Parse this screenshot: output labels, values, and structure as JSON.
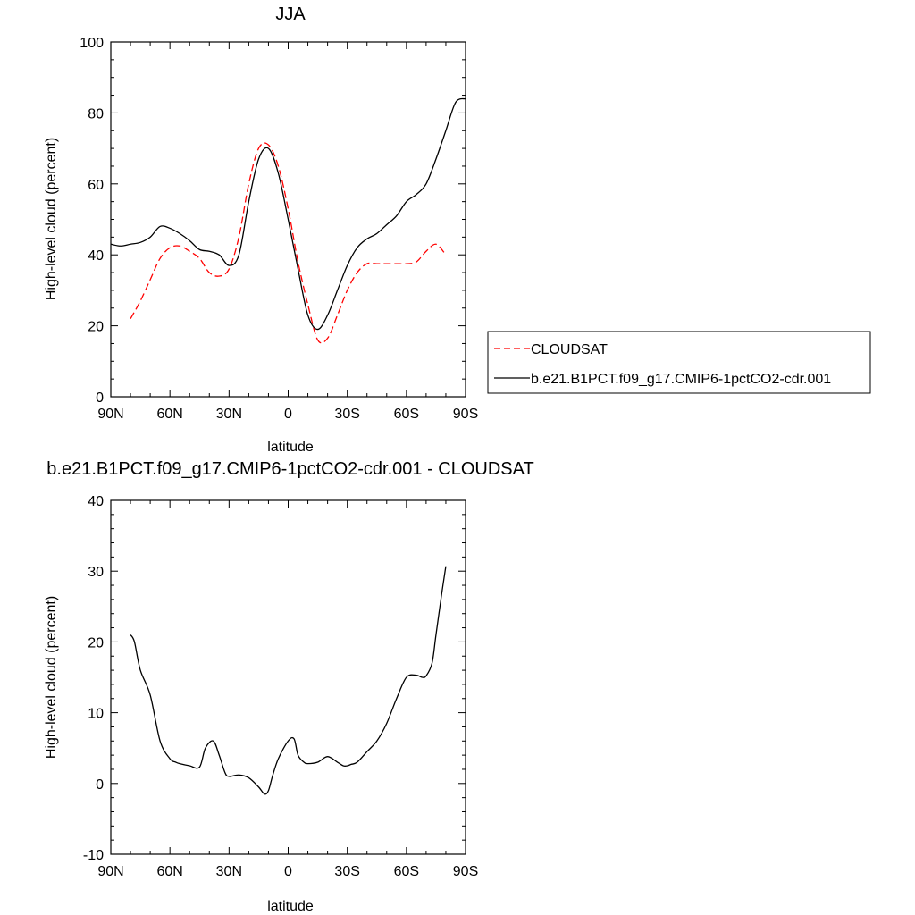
{
  "chart_data": [
    {
      "type": "line",
      "title": "JJA",
      "xlabel": "latitude",
      "ylabel": "High-level cloud (percent)",
      "xlim": [
        90,
        -90
      ],
      "ylim": [
        0,
        100
      ],
      "x_ticks": [
        {
          "value": 90,
          "label": "90N"
        },
        {
          "value": 60,
          "label": "60N"
        },
        {
          "value": 30,
          "label": "30N"
        },
        {
          "value": 0,
          "label": "0"
        },
        {
          "value": -30,
          "label": "30S"
        },
        {
          "value": -60,
          "label": "60S"
        },
        {
          "value": -90,
          "label": "90S"
        }
      ],
      "y_ticks": [
        0,
        20,
        40,
        60,
        80,
        100
      ],
      "legend_placement": "right",
      "series": [
        {
          "name": "CLOUDSAT",
          "color": "#ff0000",
          "dash": "dashed",
          "x": [
            80,
            75,
            70,
            65,
            60,
            55,
            50,
            45,
            40,
            35,
            30,
            25,
            20,
            15,
            10,
            5,
            0,
            -5,
            -10,
            -15,
            -20,
            -25,
            -30,
            -35,
            -40,
            -45,
            -50,
            -55,
            -60,
            -65,
            -70,
            -75,
            -80
          ],
          "y": [
            22,
            27,
            33,
            39,
            42,
            42.5,
            41,
            39,
            35,
            34,
            36,
            45,
            60,
            70,
            71,
            65,
            53,
            38,
            26,
            16,
            16.5,
            23,
            30,
            35,
            37.5,
            37.5,
            37.5,
            37.5,
            37.5,
            38,
            41,
            43,
            40
          ]
        },
        {
          "name": "b.e21.B1PCT.f09_g17.CMIP6-1pctCO2-cdr.001",
          "color": "#000000",
          "dash": "solid",
          "x": [
            90,
            85,
            80,
            75,
            70,
            65,
            60,
            55,
            50,
            45,
            40,
            35,
            30,
            25,
            20,
            15,
            10,
            5,
            0,
            -5,
            -10,
            -15,
            -20,
            -25,
            -30,
            -35,
            -40,
            -45,
            -50,
            -55,
            -60,
            -65,
            -70,
            -75,
            -80,
            -85,
            -90
          ],
          "y": [
            43,
            42.5,
            43,
            43.5,
            45,
            48,
            47.5,
            46,
            44,
            41.5,
            41,
            40,
            37,
            40,
            55,
            67,
            70,
            63,
            50,
            36,
            23,
            19,
            23,
            30,
            37,
            42,
            44.5,
            46,
            48.5,
            51,
            55,
            57,
            60,
            67,
            75,
            83,
            84
          ]
        }
      ]
    },
    {
      "type": "line",
      "title": "b.e21.B1PCT.f09_g17.CMIP6-1pctCO2-cdr.001 - CLOUDSAT",
      "xlabel": "latitude",
      "ylabel": "High-level cloud (percent)",
      "xlim": [
        90,
        -90
      ],
      "ylim": [
        -10,
        40
      ],
      "x_ticks": [
        {
          "value": 90,
          "label": "90N"
        },
        {
          "value": 60,
          "label": "60N"
        },
        {
          "value": 30,
          "label": "30N"
        },
        {
          "value": 0,
          "label": "0"
        },
        {
          "value": -30,
          "label": "30S"
        },
        {
          "value": -60,
          "label": "60S"
        },
        {
          "value": -90,
          "label": "90S"
        }
      ],
      "y_ticks": [
        -10,
        0,
        10,
        20,
        30,
        40
      ],
      "series": [
        {
          "color": "#000000",
          "dash": "solid",
          "x": [
            80,
            78,
            75,
            70,
            65,
            60,
            57,
            55,
            50,
            45,
            42,
            38,
            35,
            32,
            30,
            25,
            20,
            15,
            12,
            10,
            8,
            5,
            0,
            -3,
            -5,
            -8,
            -10,
            -15,
            -20,
            -25,
            -28,
            -30,
            -32,
            -35,
            -40,
            -45,
            -50,
            -55,
            -60,
            -65,
            -68,
            -70,
            -73,
            -75,
            -78,
            -80
          ],
          "y": [
            21,
            20,
            16,
            12.5,
            6,
            3.5,
            3,
            2.8,
            2.5,
            2.3,
            5,
            6,
            4,
            1.5,
            1,
            1.2,
            0.8,
            -0.5,
            -1.5,
            -1,
            1,
            3.5,
            6,
            6.3,
            4,
            3,
            2.8,
            3,
            3.8,
            3,
            2.5,
            2.5,
            2.7,
            3,
            4.5,
            6,
            8.5,
            12,
            15,
            15.3,
            15,
            15.2,
            17,
            21,
            27,
            30.7
          ]
        }
      ]
    }
  ]
}
